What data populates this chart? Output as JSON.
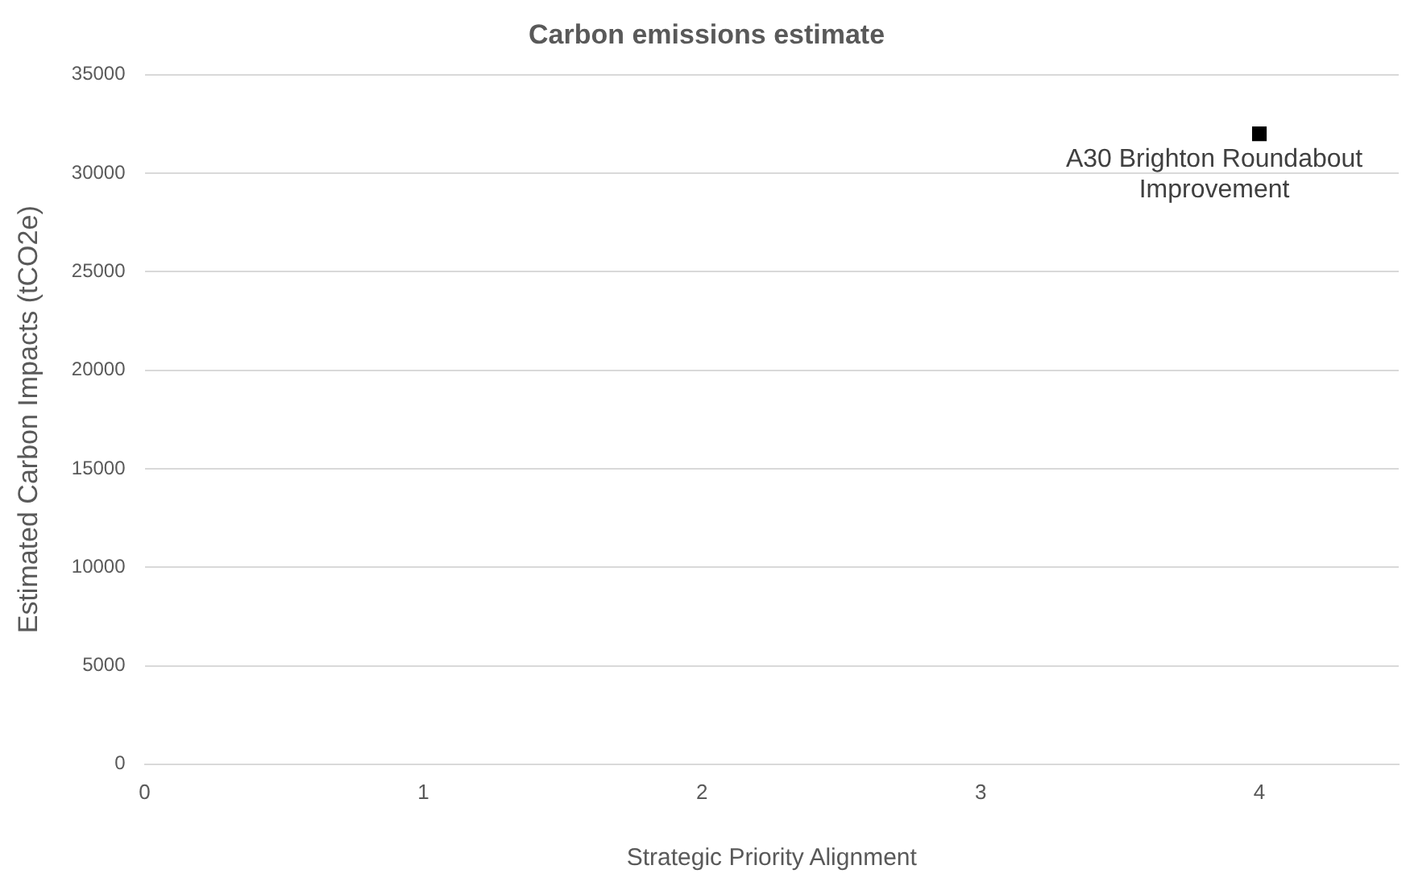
{
  "chart_data": {
    "type": "scatter",
    "title": "Carbon emissions estimate",
    "xlabel": "Strategic Priority Alignment",
    "ylabel": "Estimated Carbon Impacts (tCO2e)",
    "x": [
      4
    ],
    "values": [
      32000
    ],
    "color": "#000000",
    "marker": "square",
    "xlim": [
      0,
      4.5
    ],
    "xticks": [
      0,
      1,
      2,
      3,
      4
    ],
    "ylim": [
      0,
      35000
    ],
    "yticks": [
      0,
      5000,
      10000,
      15000,
      20000,
      25000,
      30000,
      35000
    ],
    "grid": "y",
    "legend": false,
    "annotations": [
      {
        "text": "A30 Brighton Roundabout Improvement",
        "x": 4,
        "y": 32000
      }
    ]
  }
}
